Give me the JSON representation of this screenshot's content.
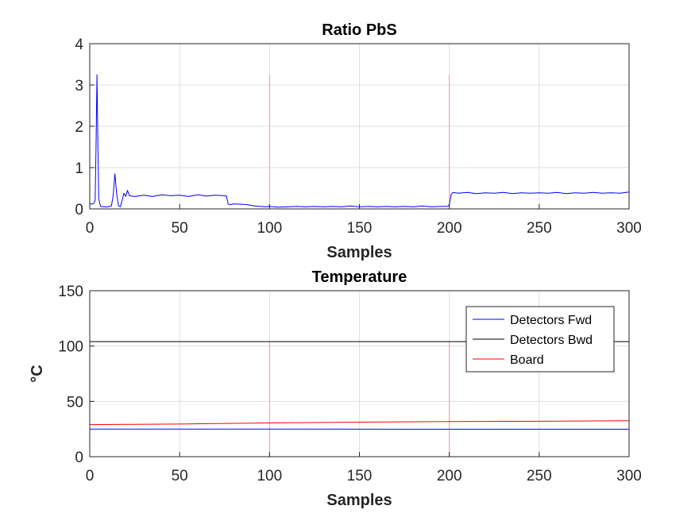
{
  "chart_data": [
    {
      "type": "line",
      "title": "Ratio PbS",
      "xlabel": "Samples",
      "ylabel": "",
      "xlim": [
        0,
        300
      ],
      "ylim": [
        0,
        4
      ],
      "xticks": [
        0,
        50,
        100,
        150,
        200,
        250,
        300
      ],
      "yticks": [
        0,
        1,
        2,
        3,
        4
      ],
      "grid": true,
      "legend": null,
      "series": [
        {
          "color": "#0000ff",
          "points": [
            [
              0,
              0.12
            ],
            [
              1,
              0.12
            ],
            [
              2,
              0.12
            ],
            [
              3,
              0.2
            ],
            [
              3.5,
              1.5
            ],
            [
              4,
              3.25
            ],
            [
              4.5,
              1.6
            ],
            [
              5,
              0.25
            ],
            [
              6,
              0.06
            ],
            [
              8,
              0.05
            ],
            [
              10,
              0.05
            ],
            [
              12,
              0.07
            ],
            [
              13,
              0.3
            ],
            [
              14,
              0.85
            ],
            [
              15,
              0.35
            ],
            [
              16,
              0.08
            ],
            [
              17,
              0.05
            ],
            [
              18,
              0.2
            ],
            [
              19,
              0.38
            ],
            [
              20,
              0.3
            ],
            [
              21,
              0.45
            ],
            [
              22,
              0.32
            ],
            [
              25,
              0.3
            ],
            [
              30,
              0.33
            ],
            [
              35,
              0.3
            ],
            [
              40,
              0.34
            ],
            [
              45,
              0.32
            ],
            [
              50,
              0.33
            ],
            [
              55,
              0.3
            ],
            [
              60,
              0.34
            ],
            [
              65,
              0.31
            ],
            [
              70,
              0.33
            ],
            [
              75,
              0.32
            ],
            [
              76,
              0.31
            ],
            [
              77,
              0.12
            ],
            [
              78,
              0.1
            ],
            [
              80,
              0.12
            ],
            [
              85,
              0.11
            ],
            [
              88,
              0.1
            ],
            [
              90,
              0.08
            ],
            [
              92,
              0.07
            ],
            [
              95,
              0.06
            ],
            [
              98,
              0.05
            ],
            [
              100,
              0.06
            ],
            [
              105,
              0.04
            ],
            [
              110,
              0.05
            ],
            [
              115,
              0.06
            ],
            [
              120,
              0.05
            ],
            [
              125,
              0.06
            ],
            [
              130,
              0.05
            ],
            [
              135,
              0.06
            ],
            [
              140,
              0.05
            ],
            [
              145,
              0.07
            ],
            [
              150,
              0.05
            ],
            [
              155,
              0.06
            ],
            [
              160,
              0.05
            ],
            [
              165,
              0.06
            ],
            [
              170,
              0.05
            ],
            [
              175,
              0.06
            ],
            [
              180,
              0.05
            ],
            [
              185,
              0.07
            ],
            [
              190,
              0.05
            ],
            [
              195,
              0.06
            ],
            [
              199,
              0.06
            ],
            [
              200,
              0.1
            ],
            [
              201,
              0.35
            ],
            [
              202,
              0.4
            ],
            [
              205,
              0.38
            ],
            [
              210,
              0.4
            ],
            [
              215,
              0.37
            ],
            [
              220,
              0.39
            ],
            [
              225,
              0.38
            ],
            [
              230,
              0.4
            ],
            [
              235,
              0.37
            ],
            [
              240,
              0.39
            ],
            [
              245,
              0.38
            ],
            [
              250,
              0.39
            ],
            [
              255,
              0.38
            ],
            [
              260,
              0.4
            ],
            [
              265,
              0.37
            ],
            [
              270,
              0.39
            ],
            [
              275,
              0.38
            ],
            [
              280,
              0.4
            ],
            [
              285,
              0.38
            ],
            [
              290,
              0.39
            ],
            [
              295,
              0.38
            ],
            [
              300,
              0.41
            ]
          ]
        }
      ],
      "markers": {
        "color": "#ff9999",
        "x": [
          100,
          200,
          300
        ],
        "top": 3.25
      }
    },
    {
      "type": "line",
      "title": "Temperature",
      "xlabel": "Samples",
      "ylabel": "°C",
      "xlim": [
        0,
        300
      ],
      "ylim": [
        0,
        150
      ],
      "xticks": [
        0,
        50,
        100,
        150,
        200,
        250,
        300
      ],
      "yticks": [
        0,
        50,
        100,
        150
      ],
      "grid": true,
      "legend": "top-right",
      "series": [
        {
          "name": "Detectors Fwd",
          "color": "#0000ff",
          "points": [
            [
              0,
              25
            ],
            [
              100,
              25
            ],
            [
              200,
              24.8
            ],
            [
              300,
              24.8
            ]
          ]
        },
        {
          "name": "Detectors Bwd",
          "color": "#000000",
          "points": [
            [
              0,
              104
            ],
            [
              100,
              104
            ],
            [
              200,
              104
            ],
            [
              300,
              104
            ]
          ]
        },
        {
          "name": "Board",
          "color": "#ff0000",
          "points": [
            [
              0,
              29
            ],
            [
              50,
              29.5
            ],
            [
              100,
              30.5
            ],
            [
              150,
              31.2
            ],
            [
              200,
              31.8
            ],
            [
              250,
              32
            ],
            [
              300,
              32.5
            ]
          ]
        }
      ],
      "markers": {
        "color": "#ff9999",
        "x": [
          100,
          200,
          300
        ],
        "top": 104
      }
    }
  ]
}
